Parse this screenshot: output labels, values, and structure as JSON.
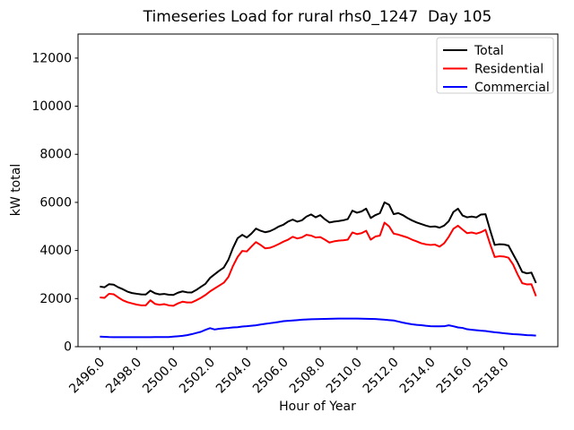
{
  "figure": {
    "title": "Timeseries Load for rural rhs0_1247  Day 105",
    "xlabel": "Hour of Year",
    "ylabel": "kW total"
  },
  "chart_data": {
    "type": "line",
    "title": "Timeseries Load for rural rhs0_1247  Day 105",
    "xlabel": "Hour of Year",
    "ylabel": "kW total",
    "grid": false,
    "xlim": [
      2494.81,
      2520.94
    ],
    "ylim": [
      0,
      13000
    ],
    "xticks": [
      2496,
      2498,
      2500,
      2502,
      2504,
      2506,
      2508,
      2510,
      2512,
      2514,
      2516,
      2518
    ],
    "xtick_labels": [
      "2496.0",
      "2498.0",
      "2500.0",
      "2502.0",
      "2504.0",
      "2506.0",
      "2508.0",
      "2510.0",
      "2512.0",
      "2514.0",
      "2516.0",
      "2518.0"
    ],
    "yticks": [
      0,
      2000,
      4000,
      6000,
      8000,
      10000,
      12000
    ],
    "ytick_labels": [
      "0",
      "2000",
      "4000",
      "6000",
      "8000",
      "10000",
      "12000"
    ],
    "legend": {
      "position": "upper right",
      "entries": [
        "Total",
        "Residential",
        "Commercial"
      ]
    },
    "x": [
      2496.0,
      2496.25,
      2496.5,
      2496.75,
      2497.0,
      2497.25,
      2497.5,
      2497.75,
      2498.0,
      2498.25,
      2498.5,
      2498.75,
      2499.0,
      2499.25,
      2499.5,
      2499.75,
      2500.0,
      2500.25,
      2500.5,
      2500.75,
      2501.0,
      2501.25,
      2501.5,
      2501.75,
      2502.0,
      2502.25,
      2502.5,
      2502.75,
      2503.0,
      2503.25,
      2503.5,
      2503.75,
      2504.0,
      2504.25,
      2504.5,
      2504.75,
      2505.0,
      2505.25,
      2505.5,
      2505.75,
      2506.0,
      2506.25,
      2506.5,
      2506.75,
      2507.0,
      2507.25,
      2507.5,
      2507.75,
      2508.0,
      2508.25,
      2508.5,
      2508.75,
      2509.0,
      2509.25,
      2509.5,
      2509.75,
      2510.0,
      2510.25,
      2510.5,
      2510.75,
      2511.0,
      2511.25,
      2511.5,
      2511.75,
      2512.0,
      2512.25,
      2512.5,
      2512.75,
      2513.0,
      2513.25,
      2513.5,
      2513.75,
      2514.0,
      2514.25,
      2514.5,
      2514.75,
      2515.0,
      2515.25,
      2515.5,
      2515.75,
      2516.0,
      2516.25,
      2516.5,
      2516.75,
      2517.0,
      2517.25,
      2517.5,
      2517.75,
      2518.0,
      2518.25,
      2518.5,
      2518.75,
      2519.0,
      2519.25,
      2519.5,
      2519.75
    ],
    "series": [
      {
        "name": "Total",
        "color": "#000000",
        "values": [
          2500,
          2470,
          2600,
          2580,
          2470,
          2390,
          2290,
          2230,
          2200,
          2175,
          2170,
          2330,
          2220,
          2175,
          2195,
          2160,
          2150,
          2245,
          2300,
          2260,
          2255,
          2360,
          2490,
          2615,
          2860,
          3010,
          3160,
          3290,
          3620,
          4110,
          4510,
          4650,
          4540,
          4700,
          4910,
          4820,
          4760,
          4800,
          4890,
          5000,
          5075,
          5205,
          5285,
          5200,
          5255,
          5410,
          5500,
          5380,
          5470,
          5300,
          5165,
          5200,
          5225,
          5255,
          5305,
          5655,
          5570,
          5625,
          5740,
          5350,
          5470,
          5550,
          6000,
          5900,
          5510,
          5555,
          5470,
          5350,
          5250,
          5165,
          5100,
          5035,
          4985,
          5000,
          4950,
          5035,
          5220,
          5600,
          5740,
          5455,
          5380,
          5410,
          5375,
          5495,
          5510,
          4850,
          4230,
          4260,
          4250,
          4205,
          3850,
          3500,
          3110,
          3050,
          3080,
          2650
        ]
      },
      {
        "name": "Residential",
        "color": "#ff0000",
        "values": [
          2050,
          2030,
          2200,
          2180,
          2050,
          1930,
          1850,
          1800,
          1750,
          1720,
          1720,
          1930,
          1780,
          1740,
          1770,
          1720,
          1700,
          1800,
          1870,
          1840,
          1840,
          1930,
          2030,
          2150,
          2300,
          2420,
          2540,
          2660,
          2900,
          3360,
          3730,
          3980,
          3960,
          4160,
          4350,
          4230,
          4090,
          4110,
          4180,
          4270,
          4370,
          4450,
          4570,
          4500,
          4545,
          4650,
          4620,
          4540,
          4560,
          4450,
          4330,
          4380,
          4410,
          4425,
          4450,
          4750,
          4680,
          4720,
          4820,
          4450,
          4580,
          4620,
          5160,
          5000,
          4700,
          4660,
          4600,
          4540,
          4450,
          4380,
          4300,
          4255,
          4230,
          4245,
          4160,
          4300,
          4570,
          4900,
          5030,
          4870,
          4720,
          4750,
          4700,
          4760,
          4860,
          4270,
          3730,
          3760,
          3750,
          3700,
          3420,
          3000,
          2640,
          2590,
          2600,
          2100
        ]
      },
      {
        "name": "Commercial",
        "color": "#0000ff",
        "values": [
          420,
          410,
          400,
          398,
          396,
          395,
          395,
          395,
          396,
          397,
          398,
          398,
          399,
          400,
          400,
          402,
          420,
          435,
          450,
          480,
          520,
          570,
          620,
          700,
          770,
          715,
          745,
          765,
          780,
          800,
          812,
          840,
          850,
          870,
          890,
          920,
          950,
          975,
          1000,
          1030,
          1060,
          1075,
          1090,
          1105,
          1120,
          1130,
          1140,
          1145,
          1150,
          1155,
          1160,
          1165,
          1170,
          1170,
          1170,
          1170,
          1170,
          1165,
          1160,
          1155,
          1150,
          1135,
          1120,
          1105,
          1090,
          1045,
          1000,
          965,
          930,
          910,
          895,
          870,
          850,
          848,
          845,
          850,
          890,
          850,
          800,
          780,
          725,
          705,
          685,
          665,
          650,
          625,
          600,
          580,
          560,
          540,
          520,
          510,
          500,
          480,
          475,
          460
        ]
      }
    ]
  }
}
